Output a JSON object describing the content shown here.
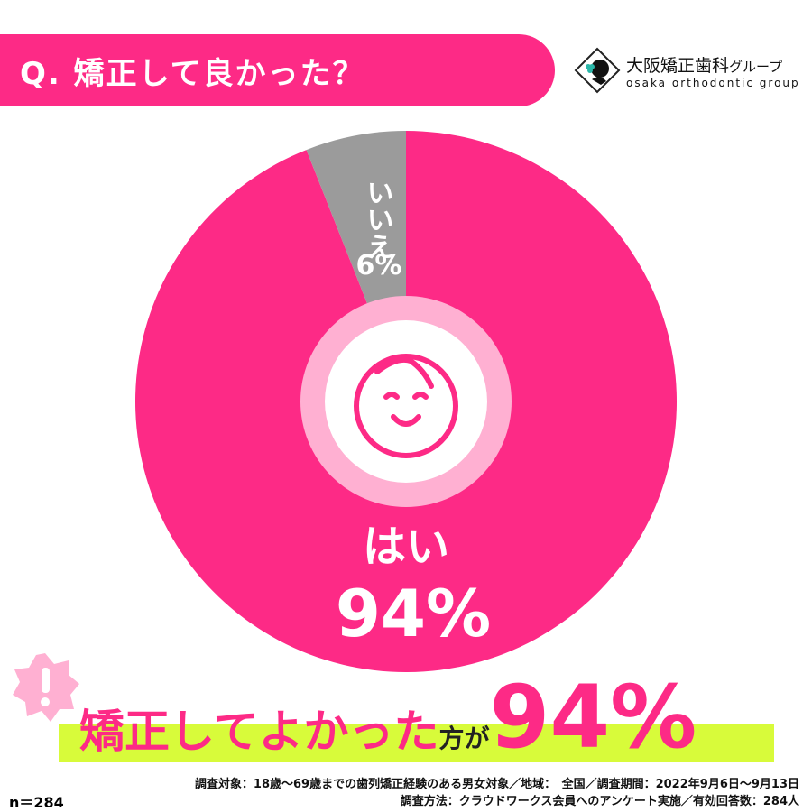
{
  "question": "Q. 矯正して良かった？",
  "logo": {
    "name": "大阪矯正歯科",
    "suffix": "グループ",
    "sub": "osaka orthodontic group"
  },
  "chart_data": {
    "type": "pie",
    "categories": [
      "はい",
      "いいえ"
    ],
    "values": [
      94,
      6
    ],
    "labels": [
      "94%",
      "6%"
    ],
    "colors": [
      "#fd2a86",
      "#9b9b9b"
    ],
    "center_icon": "smiling-baby-icon"
  },
  "headline": {
    "main": "矯正してよかった",
    "mid": "方が",
    "value": "94%"
  },
  "footer": {
    "line1": "調査対象：18歳〜69歳までの歯列矯正経験のある男女対象／地域：　全国／調査期間：2022年9月6日〜9月13日",
    "line2": "調査方法：クラウドワークス会員へのアンケート実施／有効回答数：284人",
    "n": "n＝284"
  }
}
